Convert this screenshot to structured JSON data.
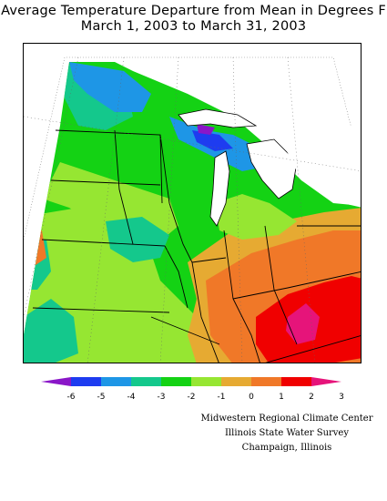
{
  "title": {
    "line1": "Average Temperature Departure from Mean in Degrees F",
    "line2": "March 1, 2003 to March 31, 2003"
  },
  "legend": {
    "ticks": [
      "-6",
      "-5",
      "-4",
      "-3",
      "-2",
      "-1",
      "0",
      "1",
      "2",
      "3"
    ],
    "colors": [
      "#8a16c8",
      "#1e3cf0",
      "#1e96e6",
      "#14c88c",
      "#14d214",
      "#96e632",
      "#e6aa32",
      "#f07828",
      "#f00000",
      "#e6147a"
    ]
  },
  "credits": {
    "line1": "Midwestern Regional Climate Center",
    "line2": "Illinois State Water Survey",
    "line3": "Champaign, Illinois"
  }
}
